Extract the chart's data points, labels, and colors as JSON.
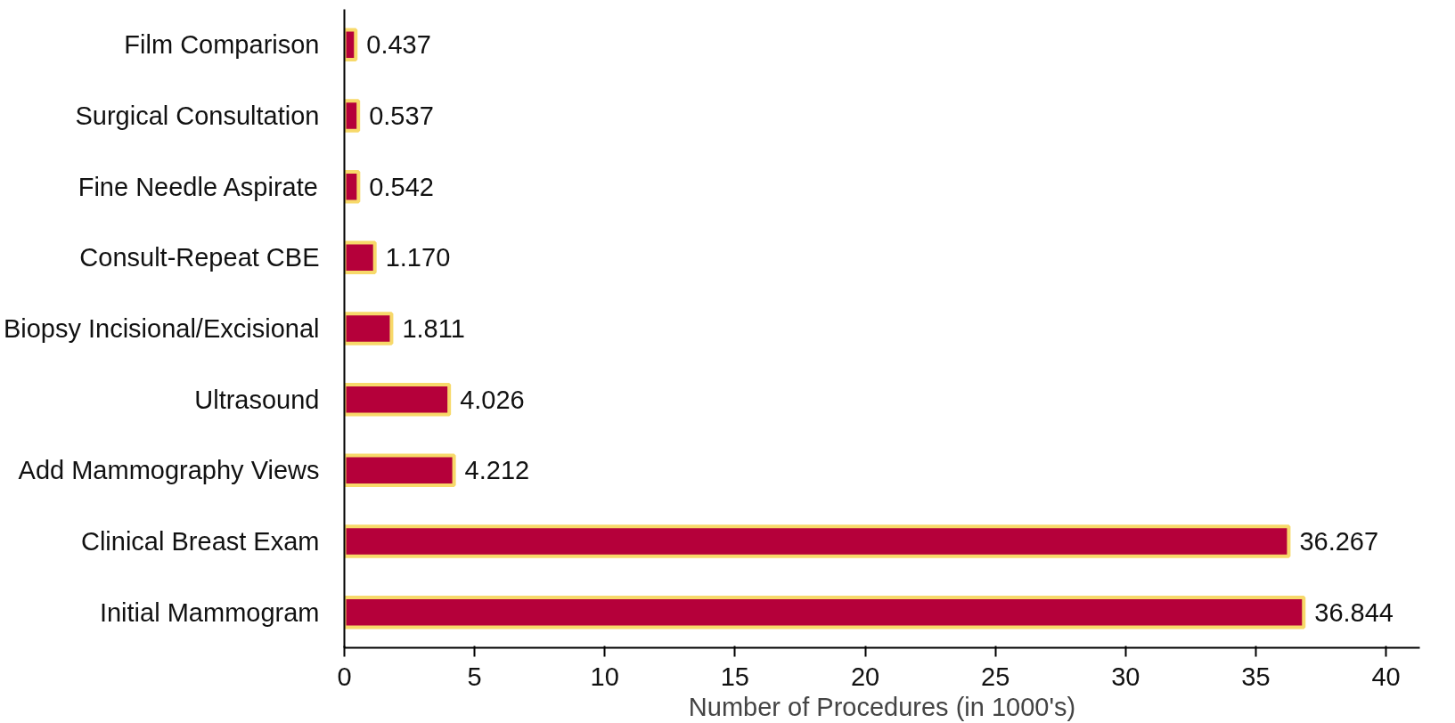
{
  "chart_data": {
    "type": "bar",
    "orientation": "horizontal",
    "xlabel": "Number of Procedures (in 1000's)",
    "categories": [
      "Film Comparison",
      "Surgical Consultation",
      "Fine Needle Aspirate",
      "Consult-Repeat CBE",
      "Biopsy Incisional/Excisional",
      "Ultrasound",
      "Add Mammography Views",
      "Clinical Breast Exam",
      "Initial Mammogram"
    ],
    "values": [
      0.437,
      0.537,
      0.542,
      1.17,
      1.811,
      4.026,
      4.212,
      36.267,
      36.844
    ],
    "value_labels": [
      "0.437",
      "0.537",
      "0.542",
      "1.170",
      "1.811",
      "4.026",
      "4.212",
      "36.267",
      "36.844"
    ],
    "color": "#b5003a",
    "xlim": [
      0,
      41.3
    ],
    "xticks": [
      0,
      5,
      10,
      15,
      20,
      25,
      30,
      35,
      40
    ],
    "grid": false
  }
}
